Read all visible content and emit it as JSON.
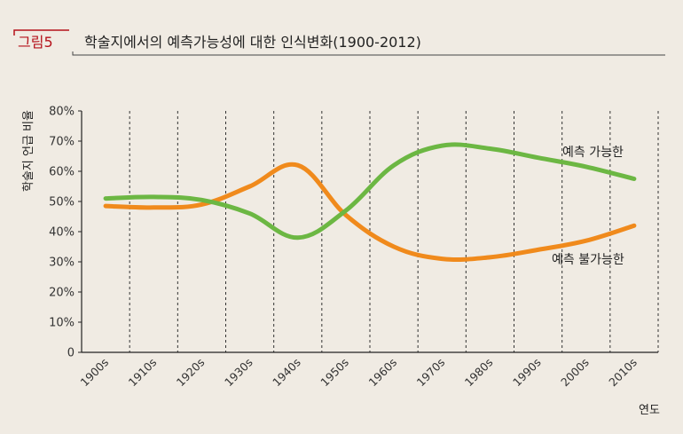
{
  "figure": {
    "badge": "그림5",
    "title": "학술지에서의 예측가능성에 대한 인식변화(1900-2012)"
  },
  "colors": {
    "badge": "#b5121b",
    "predictable": "#6cb743",
    "unpredictable": "#f08a1c",
    "background": "#f0ebe3"
  },
  "chart_data": {
    "type": "line",
    "title": "학술지에서의 예측가능성에 대한 인식변화(1900-2012)",
    "xlabel": "연도",
    "ylabel": "학술지 언급 비율",
    "categories": [
      "1900s",
      "1910s",
      "1920s",
      "1930s",
      "1940s",
      "1950s",
      "1960s",
      "1970s",
      "1980s",
      "1990s",
      "2000s",
      "2010s"
    ],
    "ylim": [
      0,
      80
    ],
    "y_ticks": [
      "0",
      "10%",
      "20%",
      "30%",
      "40%",
      "50%",
      "60%",
      "70%",
      "80%"
    ],
    "grid": "vertical dashed",
    "series": [
      {
        "name": "예측 가능한",
        "color": "#6cb743",
        "values": [
          51,
          51.5,
          50.5,
          46,
          38,
          47,
          62,
          68.5,
          67.5,
          64.5,
          61.5,
          57.5
        ]
      },
      {
        "name": "예측 불가능한",
        "color": "#f08a1c",
        "values": [
          48.5,
          48,
          49,
          55,
          62,
          45.5,
          35,
          31,
          31.5,
          34,
          37,
          42
        ]
      }
    ]
  }
}
